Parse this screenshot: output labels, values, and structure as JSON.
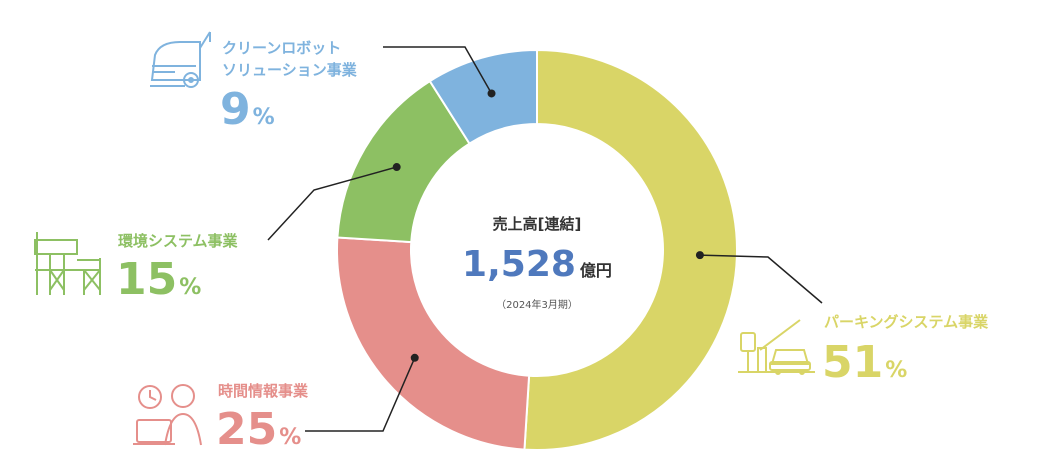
{
  "chart_data": {
    "type": "pie",
    "center": {
      "title": "売上高[連結]",
      "value": "1,528",
      "unit": "億円",
      "note": "（2024年3月期）"
    },
    "percent_unit": "%",
    "series": [
      {
        "name": "パーキングシステム事業",
        "value": 51,
        "value_label": "51",
        "color": "#d9d567"
      },
      {
        "name": "時間情報事業",
        "value": 25,
        "value_label": "25",
        "color": "#e58f8b"
      },
      {
        "name": "環境システム事業",
        "value": 15,
        "value_label": "15",
        "color": "#8dc063"
      },
      {
        "name": "クリーンロボットソリューション事業",
        "name_lines": [
          "クリーンロボット",
          "ソリューション事業"
        ],
        "value": 9,
        "value_label": "9",
        "color": "#7fb3de"
      }
    ]
  }
}
